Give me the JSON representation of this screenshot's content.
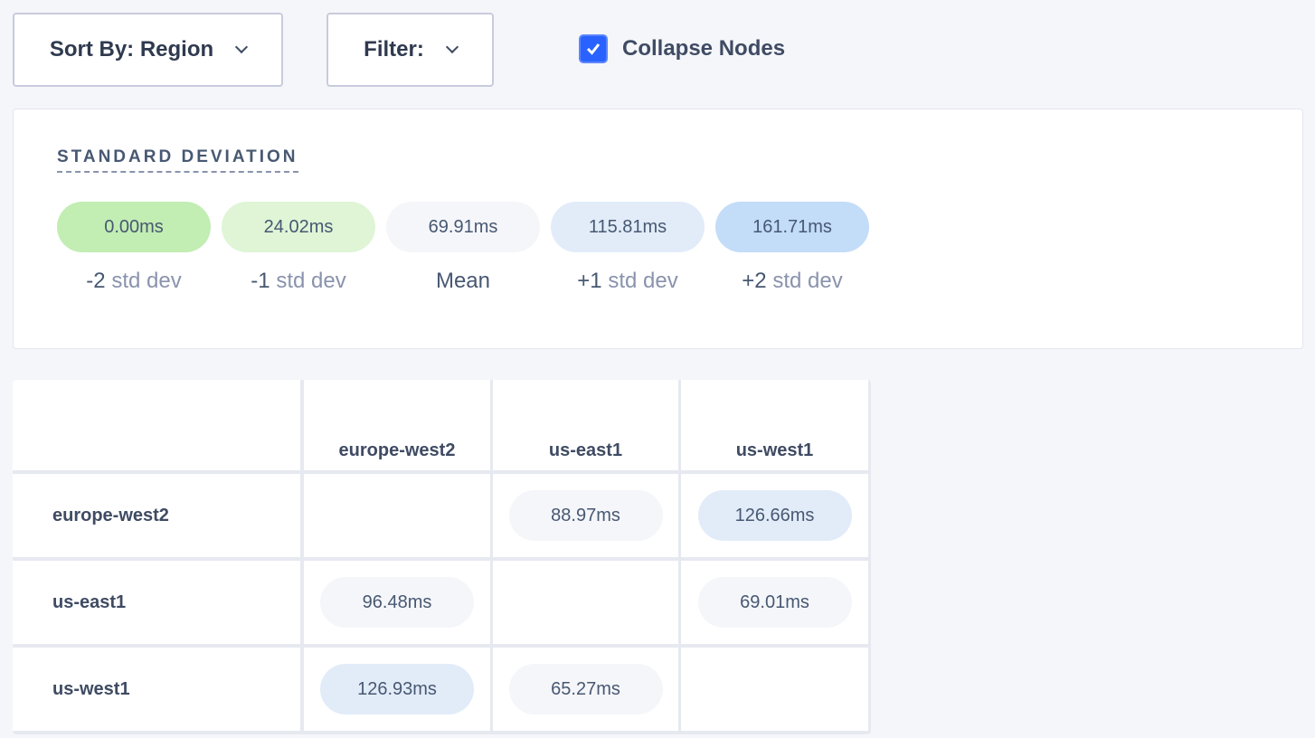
{
  "toolbar": {
    "sort_label": "Sort By: Region",
    "filter_label": "Filter:",
    "collapse_label": "Collapse Nodes",
    "collapse_checked": true
  },
  "legend": {
    "title": "STANDARD DEVIATION",
    "items": [
      {
        "value": "0.00ms",
        "prefix": "-2",
        "suffix": "std dev",
        "color": "#c2edb3"
      },
      {
        "value": "24.02ms",
        "prefix": "-1",
        "suffix": "std dev",
        "color": "#dff5d6"
      },
      {
        "value": "69.91ms",
        "prefix": "Mean",
        "suffix": "",
        "color": "#f5f6fa"
      },
      {
        "value": "115.81ms",
        "prefix": "+1",
        "suffix": "std dev",
        "color": "#e2ecf9"
      },
      {
        "value": "161.71ms",
        "prefix": "+2",
        "suffix": "std dev",
        "color": "#c3dcf8"
      }
    ]
  },
  "matrix": {
    "columns": [
      "europe-west2",
      "us-east1",
      "us-west1"
    ],
    "rows": [
      {
        "label": "europe-west2",
        "cells": [
          null,
          {
            "value": "88.97ms",
            "color": "#f5f6fa"
          },
          {
            "value": "126.66ms",
            "color": "#e2ecf9"
          }
        ]
      },
      {
        "label": "us-east1",
        "cells": [
          {
            "value": "96.48ms",
            "color": "#f5f6fa"
          },
          null,
          {
            "value": "69.01ms",
            "color": "#f5f6fa"
          }
        ]
      },
      {
        "label": "us-west1",
        "cells": [
          {
            "value": "126.93ms",
            "color": "#e2ecf9"
          },
          {
            "value": "65.27ms",
            "color": "#f5f6fa"
          },
          null
        ]
      }
    ]
  }
}
